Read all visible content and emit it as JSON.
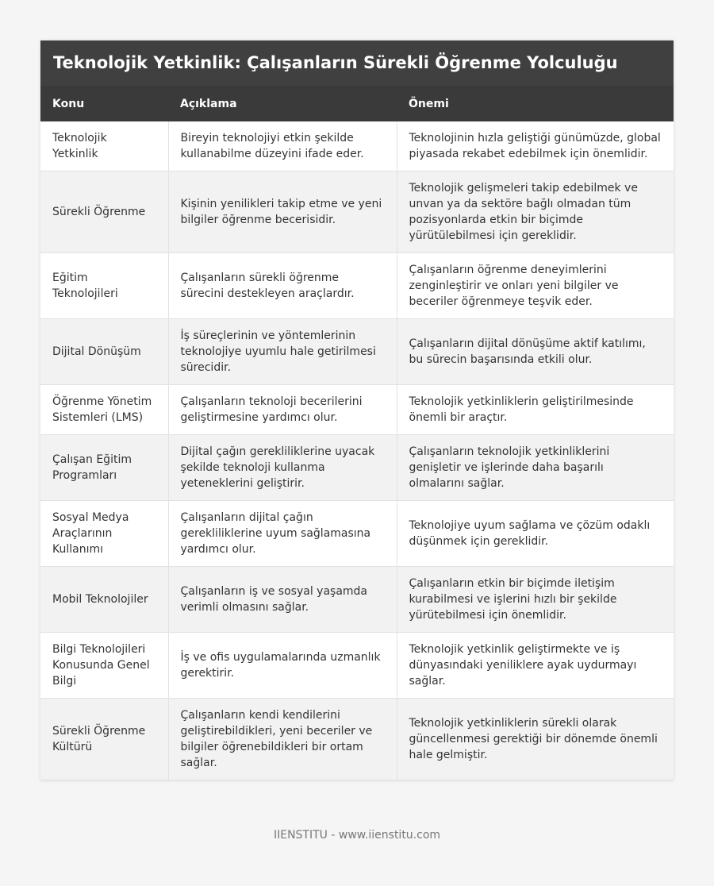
{
  "title": "Teknolojik Yetkinlik: Çalışanların Sürekli Öğrenme Yolculuğu",
  "table": {
    "headers": [
      "Konu",
      "Açıklama",
      "Önemi"
    ],
    "rows": [
      [
        "Teknolojik Yetkinlik",
        "Bireyin teknolojiyi etkin şekilde kullanabilme düzeyini ifade eder.",
        "Teknolojinin hızla geliştiği günümüzde, global piyasada rekabet edebilmek için önemlidir."
      ],
      [
        "Sürekli Öğrenme",
        "Kişinin yenilikleri takip etme ve yeni bilgiler öğrenme becerisidir.",
        "Teknolojik gelişmeleri takip edebilmek ve unvan ya da sektöre bağlı olmadan tüm pozisyonlarda etkin bir biçimde yürütülebilmesi için gereklidir."
      ],
      [
        "Eğitim Teknolojileri",
        "Çalışanların sürekli öğrenme sürecini destekleyen araçlardır.",
        "Çalışanların öğrenme deneyimlerini zenginleştirir ve onları yeni bilgiler ve beceriler öğrenmeye teşvik eder."
      ],
      [
        "Dijital Dönüşüm",
        "İş süreçlerinin ve yöntemlerinin teknolojiye uyumlu hale getirilmesi sürecidir.",
        "Çalışanların dijital dönüşüme aktif katılımı, bu sürecin başarısında etkili olur."
      ],
      [
        "Öğrenme Yönetim Sistemleri (LMS)",
        "Çalışanların teknoloji becerilerini geliştirmesine yardımcı olur.",
        "Teknolojik yetkinliklerin geliştirilmesinde önemli bir araçtır."
      ],
      [
        "Çalışan Eğitim Programları",
        "Dijital çağın gerekliliklerine uyacak şekilde teknoloji kullanma yeteneklerini geliştirir.",
        "Çalışanların teknolojik yetkinliklerini genişletir ve işlerinde daha başarılı olmalarını sağlar."
      ],
      [
        "Sosyal Medya Araçlarının Kullanımı",
        "Çalışanların dijital çağın gerekliliklerine uyum sağlamasına yardımcı olur.",
        "Teknolojiye uyum sağlama ve çözüm odaklı düşünmek için gereklidir."
      ],
      [
        "Mobil Teknolojiler",
        "Çalışanların iş ve sosyal yaşamda verimli olmasını sağlar.",
        "Çalışanların etkin bir biçimde iletişim kurabilmesi ve işlerini hızlı bir şekilde yürütebilmesi için önemlidir."
      ],
      [
        "Bilgi Teknolojileri Konusunda Genel Bilgi",
        "İş ve ofis uygulamalarında uzmanlık gerektirir.",
        "Teknolojik yetkinlik geliştirmekte ve iş dünyasındaki yeniliklere ayak uydurmayı sağlar."
      ],
      [
        "Sürekli Öğrenme Kültürü",
        "Çalışanların kendi kendilerini geliştirebildikleri, yeni beceriler ve bilgiler öğrenebildikleri bir ortam sağlar.",
        "Teknolojik yetkinliklerin sürekli olarak güncellenmesi gerektiği bir dönemde önemli hale gelmiştir."
      ]
    ]
  },
  "footer": "IIENSTITU - www.iienstitu.com"
}
